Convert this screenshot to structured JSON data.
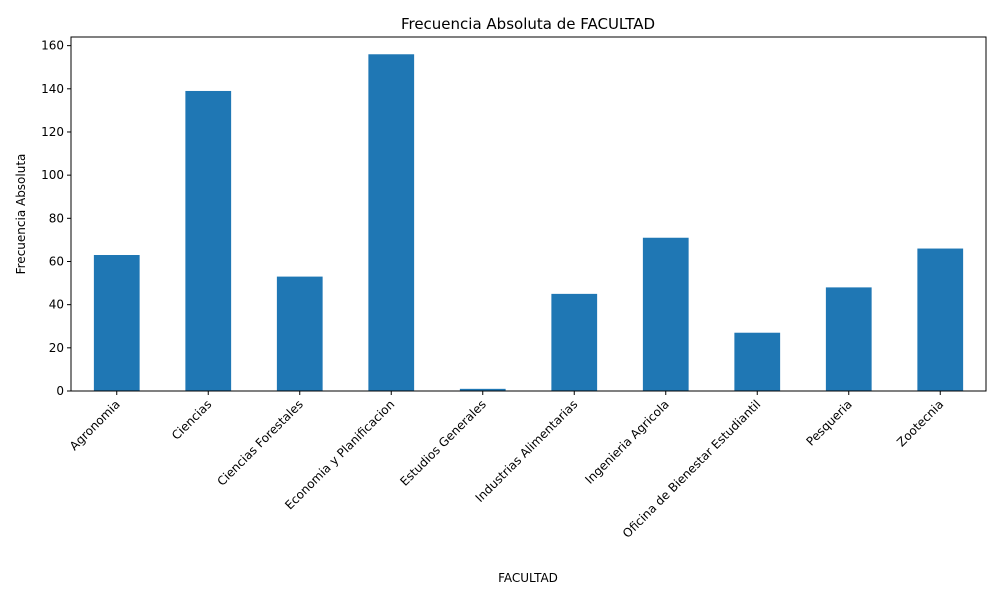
{
  "chart_data": {
    "type": "bar",
    "title": "Frecuencia Absoluta de FACULTAD",
    "xlabel": "FACULTAD",
    "ylabel": "Frecuencia Absoluta",
    "categories": [
      "Agronomia",
      "Ciencias",
      "Ciencias Forestales",
      "Economia y Planificacion",
      "Estudios Generales",
      "Industrias Alimentarias",
      "Ingenieria Agricola",
      "Oficina de Bienestar Estudiantil",
      "Pesqueria",
      "Zootecnia"
    ],
    "values": [
      63,
      139,
      53,
      156,
      1,
      45,
      71,
      27,
      48,
      66
    ],
    "ylim": [
      0,
      164
    ],
    "yticks": [
      0,
      20,
      40,
      60,
      80,
      100,
      120,
      140,
      160
    ],
    "grid": false,
    "bar_color": "#1f77b4"
  }
}
